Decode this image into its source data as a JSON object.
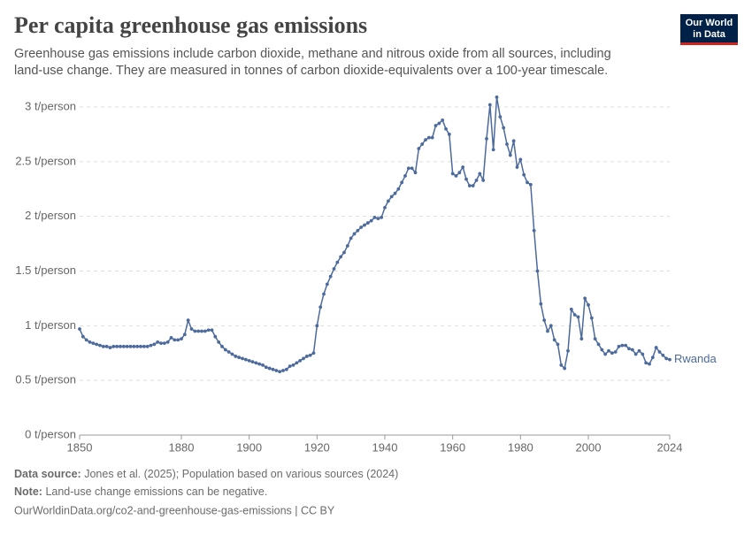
{
  "chart_data": {
    "type": "line",
    "title": "Per capita greenhouse gas emissions",
    "subtitle": [
      "Greenhouse gas emissions include carbon dioxide, methane and nitrous oxide from all sources, including",
      "land-use change. They are measured in tonnes of carbon dioxide-equivalents over a 100-year timescale."
    ],
    "logo": [
      "Our World",
      "in Data"
    ],
    "footer": {
      "source_label": "Data source:",
      "source": "Jones et al. (2025); Population based on various sources (2024)",
      "note_label": "Note:",
      "note": "Land-use change emissions can be negative.",
      "url": "OurWorldinData.org/co2-and-greenhouse-gas-emissions | CC BY"
    },
    "x": [
      1850,
      1851,
      1852,
      1853,
      1854,
      1855,
      1856,
      1857,
      1858,
      1859,
      1860,
      1861,
      1862,
      1863,
      1864,
      1865,
      1866,
      1867,
      1868,
      1869,
      1870,
      1871,
      1872,
      1873,
      1874,
      1875,
      1876,
      1877,
      1878,
      1879,
      1880,
      1881,
      1882,
      1883,
      1884,
      1885,
      1886,
      1887,
      1888,
      1889,
      1890,
      1891,
      1892,
      1893,
      1894,
      1895,
      1896,
      1897,
      1898,
      1899,
      1900,
      1901,
      1902,
      1903,
      1904,
      1905,
      1906,
      1907,
      1908,
      1909,
      1910,
      1911,
      1912,
      1913,
      1914,
      1915,
      1916,
      1917,
      1918,
      1919,
      1920,
      1921,
      1922,
      1923,
      1924,
      1925,
      1926,
      1927,
      1928,
      1929,
      1930,
      1931,
      1932,
      1933,
      1934,
      1935,
      1936,
      1937,
      1938,
      1939,
      1940,
      1941,
      1942,
      1943,
      1944,
      1945,
      1946,
      1947,
      1948,
      1949,
      1950,
      1951,
      1952,
      1953,
      1954,
      1955,
      1956,
      1957,
      1958,
      1959,
      1960,
      1961,
      1962,
      1963,
      1964,
      1965,
      1966,
      1967,
      1968,
      1969,
      1970,
      1971,
      1972,
      1973,
      1974,
      1975,
      1976,
      1977,
      1978,
      1979,
      1980,
      1981,
      1982,
      1983,
      1984,
      1985,
      1986,
      1987,
      1988,
      1989,
      1990,
      1991,
      1992,
      1993,
      1994,
      1995,
      1996,
      1997,
      1998,
      1999,
      2000,
      2001,
      2002,
      2003,
      2004,
      2005,
      2006,
      2007,
      2008,
      2009,
      2010,
      2011,
      2012,
      2013,
      2014,
      2015,
      2016,
      2017,
      2018,
      2019,
      2020,
      2021,
      2022,
      2023,
      2024
    ],
    "series": [
      {
        "name": "Rwanda",
        "color": "#4c6a9c",
        "values": [
          0.97,
          0.9,
          0.87,
          0.85,
          0.84,
          0.83,
          0.82,
          0.81,
          0.81,
          0.8,
          0.81,
          0.81,
          0.81,
          0.81,
          0.81,
          0.81,
          0.81,
          0.81,
          0.81,
          0.81,
          0.81,
          0.82,
          0.83,
          0.85,
          0.84,
          0.84,
          0.85,
          0.89,
          0.87,
          0.87,
          0.88,
          0.92,
          1.05,
          0.97,
          0.95,
          0.95,
          0.95,
          0.95,
          0.96,
          0.96,
          0.9,
          0.85,
          0.81,
          0.78,
          0.76,
          0.74,
          0.72,
          0.71,
          0.7,
          0.69,
          0.68,
          0.67,
          0.66,
          0.65,
          0.64,
          0.62,
          0.61,
          0.6,
          0.59,
          0.58,
          0.59,
          0.6,
          0.63,
          0.64,
          0.66,
          0.68,
          0.7,
          0.72,
          0.73,
          0.75,
          1.0,
          1.17,
          1.29,
          1.38,
          1.45,
          1.52,
          1.58,
          1.63,
          1.67,
          1.73,
          1.8,
          1.84,
          1.87,
          1.9,
          1.92,
          1.94,
          1.96,
          1.99,
          1.98,
          1.99,
          2.08,
          2.14,
          2.18,
          2.21,
          2.25,
          2.31,
          2.37,
          2.44,
          2.44,
          2.4,
          2.62,
          2.66,
          2.7,
          2.72,
          2.72,
          2.83,
          2.85,
          2.88,
          2.8,
          2.75,
          2.39,
          2.37,
          2.4,
          2.45,
          2.34,
          2.28,
          2.28,
          2.33,
          2.39,
          2.33,
          2.71,
          3.02,
          2.61,
          3.09,
          2.91,
          2.81,
          2.66,
          2.56,
          2.69,
          2.45,
          2.52,
          2.38,
          2.31,
          2.29,
          1.87,
          1.5,
          1.2,
          1.05,
          0.95,
          1.0,
          0.87,
          0.83,
          0.64,
          0.61,
          0.77,
          1.15,
          1.1,
          1.08,
          0.88,
          1.25,
          1.19,
          1.07,
          0.88,
          0.83,
          0.78,
          0.74,
          0.77,
          0.75,
          0.76,
          0.81,
          0.82,
          0.82,
          0.79,
          0.78,
          0.74,
          0.77,
          0.74,
          0.66,
          0.65,
          0.71,
          0.8,
          0.76,
          0.73,
          0.7,
          0.69
        ]
      }
    ],
    "xlim": [
      1850,
      2024
    ],
    "xticks": [
      1850,
      1880,
      1900,
      1920,
      1940,
      1960,
      1980,
      2000,
      2024
    ],
    "ylim": [
      0,
      3
    ],
    "yticks": [
      {
        "value": 0,
        "label": "0 t/person"
      },
      {
        "value": 0.5,
        "label": "0.5 t/person"
      },
      {
        "value": 1,
        "label": "1 t/person"
      },
      {
        "value": 1.5,
        "label": "1.5 t/person"
      },
      {
        "value": 2,
        "label": "2 t/person"
      },
      {
        "value": 2.5,
        "label": "2.5 t/person"
      },
      {
        "value": 3,
        "label": "3 t/person"
      }
    ],
    "grid": true
  }
}
